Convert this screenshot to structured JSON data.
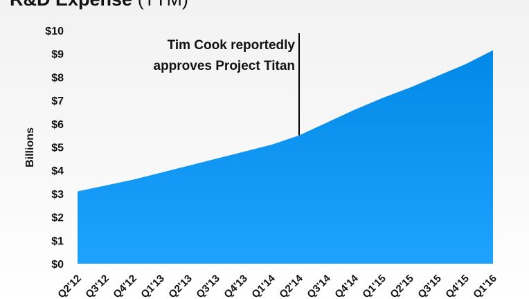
{
  "chart_data": {
    "type": "area",
    "title": "R&D Expense",
    "title_suffix": "(TTM)",
    "xlabel": "",
    "ylabel": "Billions",
    "ylim": [
      0,
      10
    ],
    "y_ticks": [
      0,
      1,
      2,
      3,
      4,
      5,
      6,
      7,
      8,
      9,
      10
    ],
    "y_tick_labels": [
      "$0",
      "$1",
      "$2",
      "$3",
      "$4",
      "$5",
      "$6",
      "$7",
      "$8",
      "$9",
      "$10"
    ],
    "categories": [
      "Q2'12",
      "Q3'12",
      "Q4'12",
      "Q1'13",
      "Q2'13",
      "Q3'13",
      "Q4'13",
      "Q1'14",
      "Q2'14",
      "Q3'14",
      "Q4'14",
      "Q1'15",
      "Q2'15",
      "Q3'15",
      "Q4'15",
      "Q1'16"
    ],
    "values": [
      3.1,
      3.35,
      3.6,
      3.9,
      4.2,
      4.5,
      4.8,
      5.1,
      5.5,
      6.05,
      6.6,
      7.1,
      7.55,
      8.05,
      8.55,
      9.15
    ],
    "grid": false,
    "legend": "none",
    "colors": {
      "area_top": "#0288e6",
      "area_bottom": "#1ea3ff"
    },
    "annotation": {
      "category": "Q2'14",
      "lines": [
        "Tim Cook reportedly",
        "approves Project Titan"
      ]
    }
  }
}
